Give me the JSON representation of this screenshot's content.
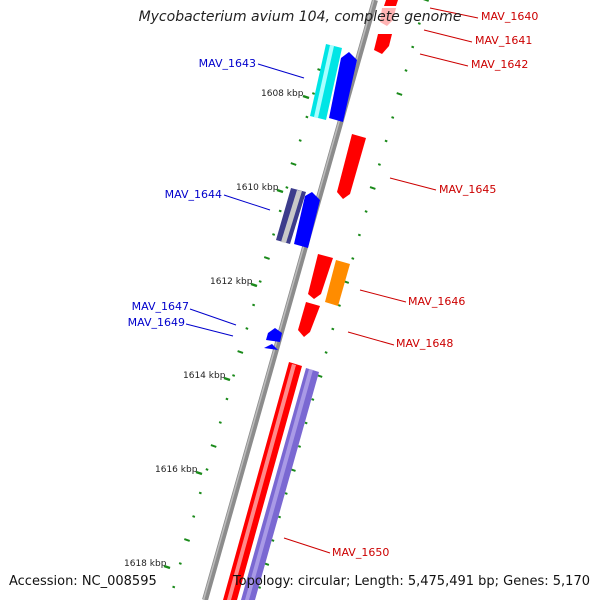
{
  "title": "Mycobacterium avium 104, complete genome",
  "accession_text": "Accession: NC_008595",
  "topology_text": "Topology: circular; Length: 5,475,491 bp; Genes: 5,170",
  "colors": {
    "backbone": "#8c8c8c",
    "tick": "#1a8a1a",
    "label_plus": "#cc0000",
    "label_minus": "#0000cc",
    "gene_red": "#ff0000",
    "gene_pink": "#ffb3b3",
    "gene_cyan": "#00e5e5",
    "gene_blue": "#0000ff",
    "gene_indigo": "#3c3c8c",
    "gene_orange": "#ff8c00",
    "gene_violet": "#7a68d2"
  },
  "ruler": {
    "labels": [
      "1608 kbp",
      "1610 kbp",
      "1612 kbp",
      "1614 kbp",
      "1616 kbp",
      "1618 kbp"
    ]
  },
  "genes_minus": [
    {
      "name": "MAV_1643"
    },
    {
      "name": "MAV_1644"
    },
    {
      "name": "MAV_1647"
    },
    {
      "name": "MAV_1649"
    }
  ],
  "genes_plus": [
    {
      "name": "MAV_1640"
    },
    {
      "name": "MAV_1641"
    },
    {
      "name": "MAV_1642"
    },
    {
      "name": "MAV_1645"
    },
    {
      "name": "MAV_1646"
    },
    {
      "name": "MAV_1648"
    },
    {
      "name": "MAV_1650"
    }
  ]
}
